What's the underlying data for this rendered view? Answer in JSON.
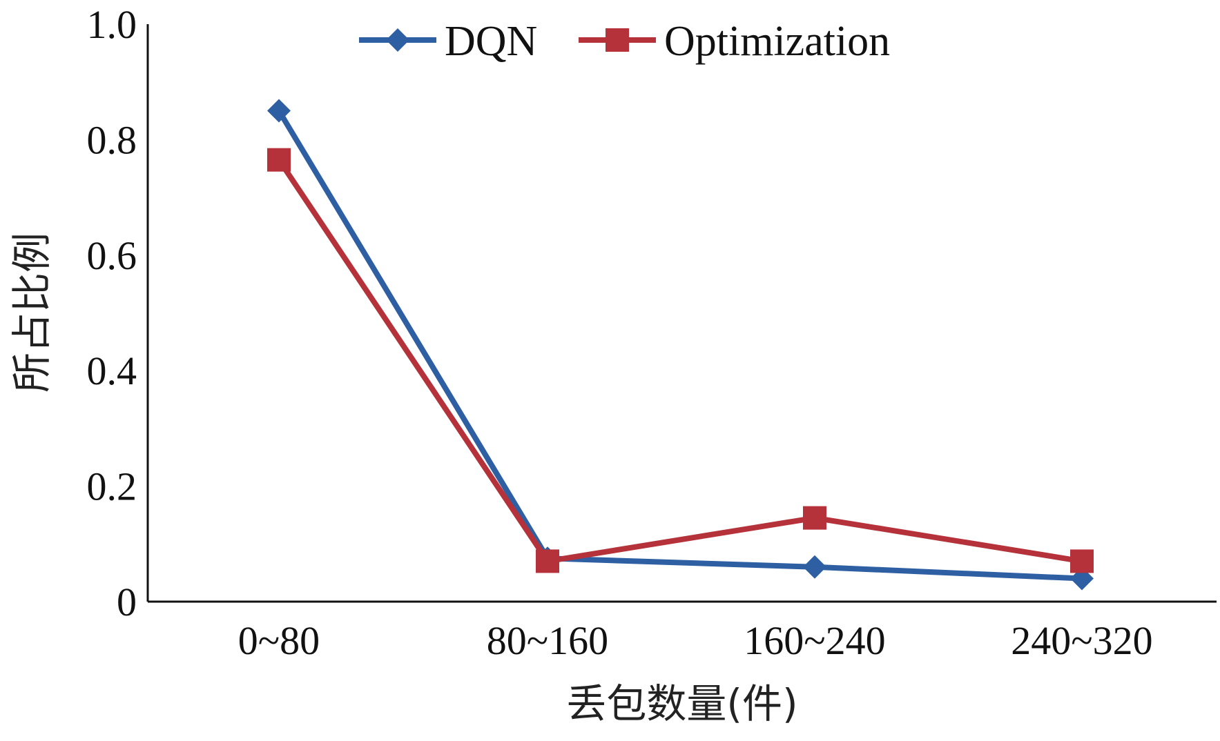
{
  "chart_data": {
    "type": "line",
    "title": "",
    "xlabel": "丢包数量(件)",
    "ylabel": "所占比例",
    "categories": [
      "0~80",
      "80~160",
      "160~240",
      "240~320"
    ],
    "y_ticks": [
      "0",
      "0.2",
      "0.4",
      "0.6",
      "0.8",
      "1.0"
    ],
    "y_tick_values": [
      0,
      0.2,
      0.4,
      0.6,
      0.8,
      1.0
    ],
    "ylim": [
      0,
      1.0
    ],
    "grid": false,
    "legend_position": "top",
    "series": [
      {
        "name": "DQN",
        "values": [
          0.85,
          0.075,
          0.06,
          0.04
        ],
        "color": "#2E5FA3",
        "marker": "diamond"
      },
      {
        "name": "Optimization",
        "values": [
          0.765,
          0.07,
          0.145,
          0.07
        ],
        "color": "#B5323A",
        "marker": "square"
      }
    ]
  }
}
